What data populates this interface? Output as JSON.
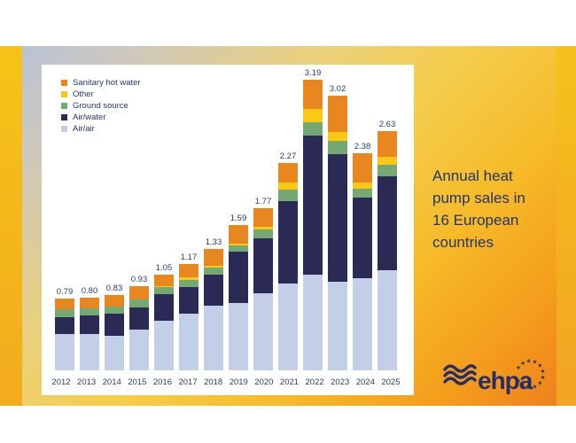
{
  "slide": {
    "title_lines": [
      "Annual heat",
      "pump sales in",
      "16 European",
      "countries"
    ],
    "logo_text": "ehpa"
  },
  "colors": {
    "air_air": "#c2cfe7",
    "air_water": "#2a2a55",
    "ground_source": "#74a973",
    "other": "#fdc815",
    "sanitary_hot_water": "#e8861f",
    "label_text": "#2b3a6b",
    "title_text": "#23366b",
    "logo_navy": "#272e66",
    "gold_strip": "#f5c01d"
  },
  "chart_data": {
    "type": "bar",
    "stacked": true,
    "title": "Annual heat pump sales in 16 European countries",
    "xlabel": "",
    "ylabel": "",
    "ylim": [
      0,
      3.4
    ],
    "grid": false,
    "legend_position": "top-left",
    "categories": [
      "2012",
      "2013",
      "2014",
      "2015",
      "2016",
      "2017",
      "2018",
      "2019",
      "2020",
      "2021",
      "2022",
      "2023",
      "2024",
      "2025"
    ],
    "totals": [
      "0.79",
      "0.80",
      "0.83",
      "0.93",
      "1.05",
      "1.17",
      "1.33",
      "1.59",
      "1.77",
      "2.27",
      "3.19",
      "3.02",
      "2.38",
      "2.63"
    ],
    "series": [
      {
        "name": "Air/air",
        "color_key": "air_air",
        "values": [
          0.4,
          0.4,
          0.38,
          0.45,
          0.54,
          0.62,
          0.71,
          0.74,
          0.84,
          0.95,
          1.05,
          0.97,
          1.01,
          1.1
        ]
      },
      {
        "name": "Air/water",
        "color_key": "air_water",
        "values": [
          0.18,
          0.2,
          0.24,
          0.24,
          0.29,
          0.29,
          0.34,
          0.56,
          0.6,
          0.9,
          1.52,
          1.4,
          0.88,
          1.03
        ]
      },
      {
        "name": "Ground source",
        "color_key": "ground_source",
        "values": [
          0.09,
          0.08,
          0.08,
          0.09,
          0.08,
          0.08,
          0.08,
          0.07,
          0.1,
          0.13,
          0.15,
          0.15,
          0.1,
          0.13
        ]
      },
      {
        "name": "Other",
        "color_key": "other",
        "values": [
          0.0,
          0.0,
          0.0,
          0.0,
          0.01,
          0.03,
          0.02,
          0.02,
          0.03,
          0.08,
          0.15,
          0.1,
          0.07,
          0.09
        ]
      },
      {
        "name": "Sanitary hot water",
        "color_key": "sanitary_hot_water",
        "values": [
          0.12,
          0.12,
          0.13,
          0.15,
          0.13,
          0.15,
          0.18,
          0.2,
          0.2,
          0.21,
          0.32,
          0.4,
          0.32,
          0.28
        ]
      }
    ],
    "legend": [
      {
        "label": "Sanitary hot water",
        "color_key": "sanitary_hot_water"
      },
      {
        "label": "Other",
        "color_key": "other"
      },
      {
        "label": "Ground source",
        "color_key": "ground_source"
      },
      {
        "label": "Air/water",
        "color_key": "air_water"
      },
      {
        "label": "Air/air",
        "color_key": "air_air"
      }
    ]
  }
}
